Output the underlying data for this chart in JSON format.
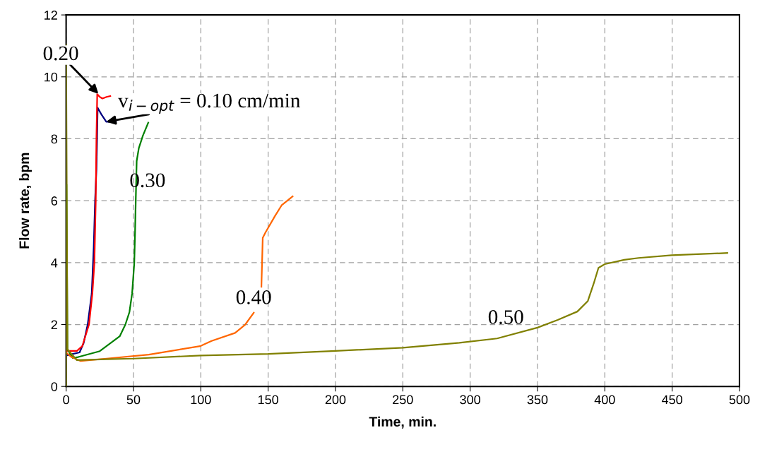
{
  "chart_data": {
    "type": "line",
    "xlabel": "Time, min.",
    "ylabel": "Flow rate, bpm",
    "xlim": [
      0,
      500
    ],
    "xticks": [
      0,
      50,
      100,
      150,
      200,
      250,
      300,
      350,
      400,
      450,
      500
    ],
    "ylim": [
      0,
      12
    ],
    "yticks": [
      0,
      2,
      4,
      6,
      8,
      10,
      12
    ],
    "grid": true,
    "marker": "none",
    "line_style": "solid",
    "series": [
      {
        "color": "#000080",
        "x": [
          0,
          5,
          10,
          13,
          16,
          19,
          20.5,
          21.5,
          22.5,
          23,
          23.4,
          26,
          29.8,
          37
        ],
        "values": [
          1.0,
          1.05,
          1.1,
          1.4,
          2.0,
          3.0,
          4.5,
          6.0,
          7.0,
          8.0,
          9.0,
          8.8,
          8.55,
          8.55
        ]
      },
      {
        "color": "#ff0000",
        "x": [
          0,
          8,
          12,
          17,
          19.5,
          21,
          22,
          22.5,
          23.1,
          25,
          27,
          30,
          32.8
        ],
        "values": [
          1.15,
          1.15,
          1.3,
          2.0,
          3.0,
          4.0,
          6.0,
          8.0,
          9.44,
          9.35,
          9.3,
          9.35,
          9.38
        ]
      },
      {
        "color": "#008000",
        "x": [
          0.3,
          1,
          5,
          9,
          25,
          39.8,
          44,
          47,
          49,
          50.6,
          51.2,
          51.7,
          52.4,
          54,
          57,
          61
        ],
        "values": [
          6.5,
          1.2,
          0.92,
          0.95,
          1.14,
          1.62,
          2.0,
          2.4,
          3.0,
          3.98,
          5.0,
          6.0,
          7.28,
          7.7,
          8.1,
          8.52
        ]
      },
      {
        "color": "#ff6600",
        "x": [
          0,
          4,
          10.8,
          30,
          61.4,
          99.4,
          108,
          125.5,
          133,
          139.3,
          null,
          145,
          145.5,
          146,
          148,
          155,
          160,
          168.2
        ],
        "values": [
          1.1,
          0.95,
          0.82,
          0.9,
          1.03,
          1.3,
          1.47,
          1.73,
          2.0,
          2.38,
          null,
          3.22,
          4.0,
          4.8,
          4.97,
          5.5,
          5.85,
          6.14
        ]
      },
      {
        "color": "#808000",
        "x": [
          0,
          0,
          0.5,
          1,
          8,
          30,
          50,
          100,
          150,
          200,
          250,
          292,
          320,
          350,
          365,
          379.6,
          387.4,
          391.8,
          395.3,
          400,
          414.4,
          425,
          449.6,
          491
        ],
        "values": [
          0,
          11.05,
          6.0,
          1.2,
          0.85,
          0.88,
          0.9,
          1.0,
          1.05,
          1.15,
          1.25,
          1.41,
          1.55,
          1.9,
          2.15,
          2.42,
          2.76,
          3.33,
          3.83,
          3.95,
          4.09,
          4.15,
          4.24,
          4.31
        ]
      }
    ],
    "annotations": [
      {
        "text": "0.20",
        "x": 24,
        "y": 9.45
      },
      {
        "text": "v$_{i−opt}$ = 0.10 cm/min",
        "x": 29.8,
        "y": 8.55
      },
      {
        "text": "0.30",
        "x": 51.7,
        "y": 6.0
      },
      {
        "text": "0.40",
        "x": 139.3,
        "y": 2.38
      },
      {
        "text": "0.50",
        "x": 320,
        "y": 1.55
      }
    ]
  }
}
